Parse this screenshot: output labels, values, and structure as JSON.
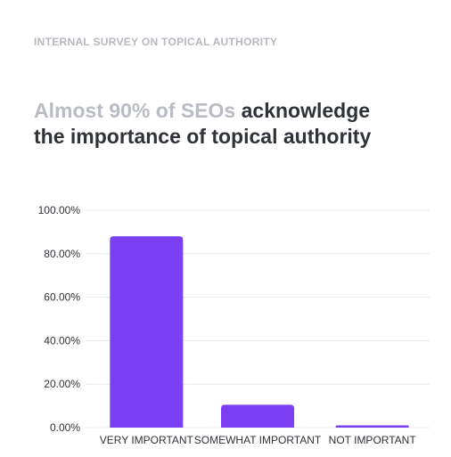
{
  "header": {
    "eyebrow": "INTERNAL SURVEY ON TOPICAL AUTHORITY",
    "headline_muted": "Almost 90% of SEOs",
    "headline_strong_1": "acknowledge",
    "headline_strong_2": "the importance of topical authority"
  },
  "colors": {
    "bar": "#7b3ff2",
    "grid": "#e9e9ec",
    "axis_text": "#2f3237"
  },
  "chart_data": {
    "type": "bar",
    "categories": [
      "VERY IMPORTANT",
      "SOMEWHAT IMPORTANT",
      "NOT IMPORTANT"
    ],
    "values": [
      88,
      10.5,
      1
    ],
    "ylim": [
      0,
      100
    ],
    "yticks": [
      "0.00%",
      "20.00%",
      "40.00%",
      "60.00%",
      "80.00%",
      "100.00%"
    ],
    "ytick_values": [
      0,
      20,
      40,
      60,
      80,
      100
    ],
    "grid": true
  }
}
